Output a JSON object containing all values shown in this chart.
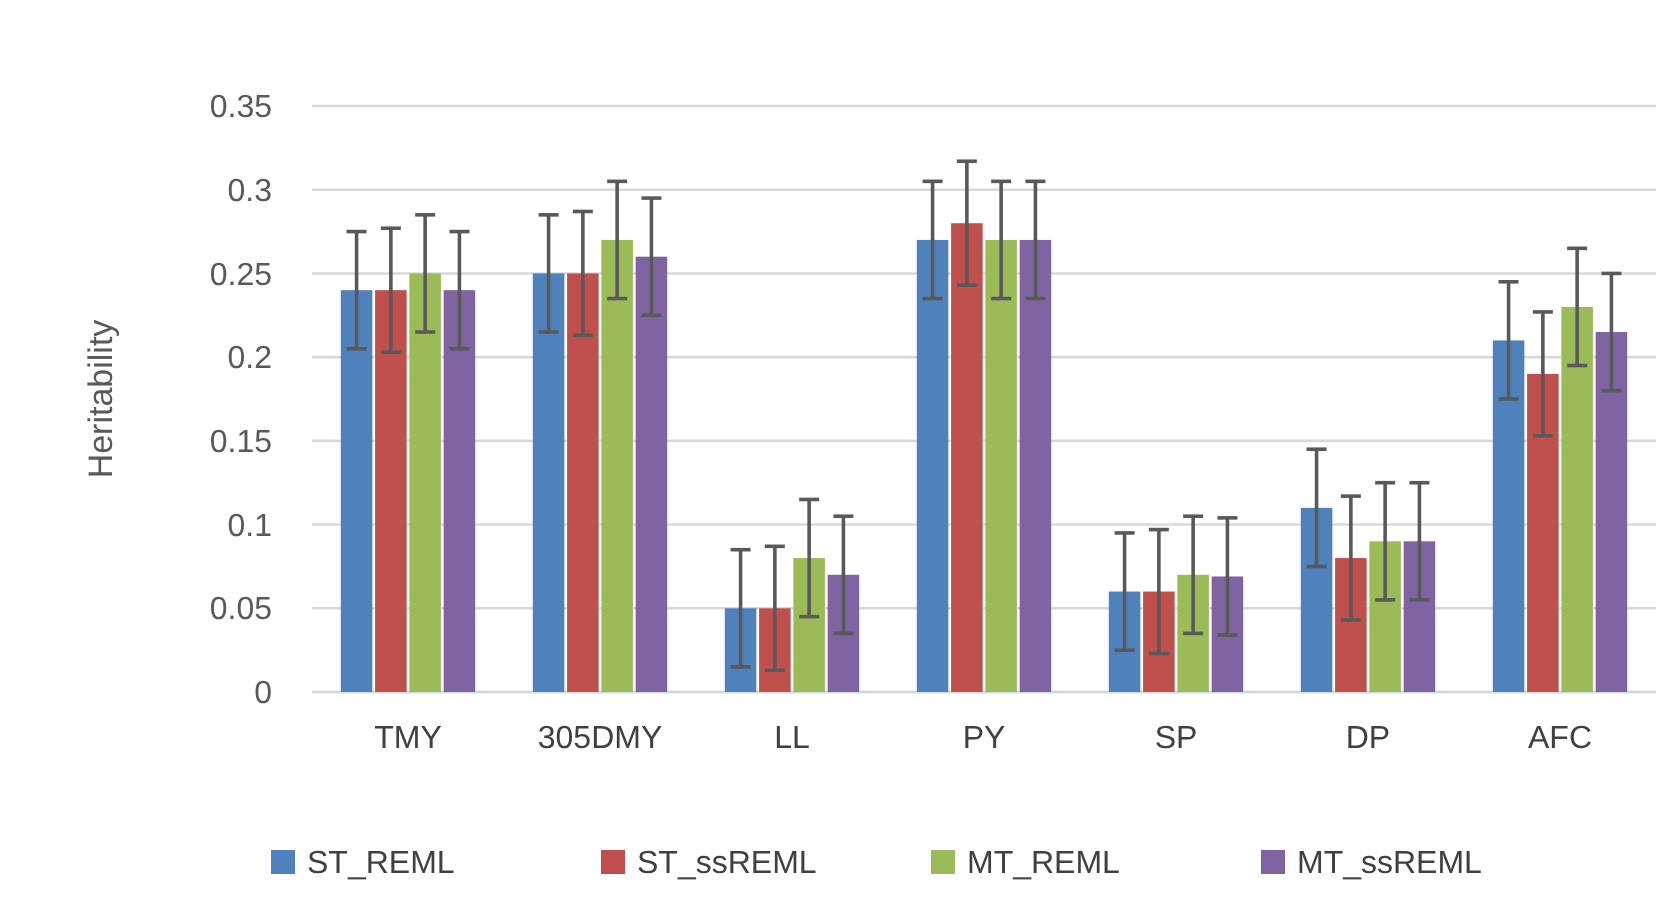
{
  "chart_data": {
    "type": "bar",
    "ylabel": "Heritability",
    "categories": [
      "TMY",
      "305DMY",
      "LL",
      "PY",
      "SP",
      "DP",
      "AFC"
    ],
    "series": [
      {
        "name": "ST_REML",
        "color": "#4f81bd",
        "values": [
          0.24,
          0.25,
          0.05,
          0.27,
          0.06,
          0.11,
          0.21
        ],
        "errors": [
          0.035,
          0.035,
          0.035,
          0.035,
          0.035,
          0.035,
          0.035
        ]
      },
      {
        "name": "ST_ssREML",
        "color": "#c0504d",
        "values": [
          0.24,
          0.25,
          0.05,
          0.28,
          0.06,
          0.08,
          0.19
        ],
        "errors": [
          0.037,
          0.037,
          0.037,
          0.037,
          0.037,
          0.037,
          0.037
        ]
      },
      {
        "name": "MT_REML",
        "color": "#9bbb59",
        "values": [
          0.25,
          0.27,
          0.08,
          0.27,
          0.07,
          0.09,
          0.23
        ],
        "errors": [
          0.035,
          0.035,
          0.035,
          0.035,
          0.035,
          0.035,
          0.035
        ]
      },
      {
        "name": "MT_ssREML",
        "color": "#8064a2",
        "values": [
          0.24,
          0.26,
          0.07,
          0.27,
          0.069,
          0.09,
          0.215
        ],
        "errors": [
          0.035,
          0.035,
          0.035,
          0.035,
          0.035,
          0.035,
          0.035
        ]
      }
    ],
    "ylim": [
      0,
      0.35
    ],
    "yticks": [
      0,
      0.05,
      0.1,
      0.15,
      0.2,
      0.25,
      0.3,
      0.35
    ],
    "grid": "y",
    "legend": "bottom"
  }
}
